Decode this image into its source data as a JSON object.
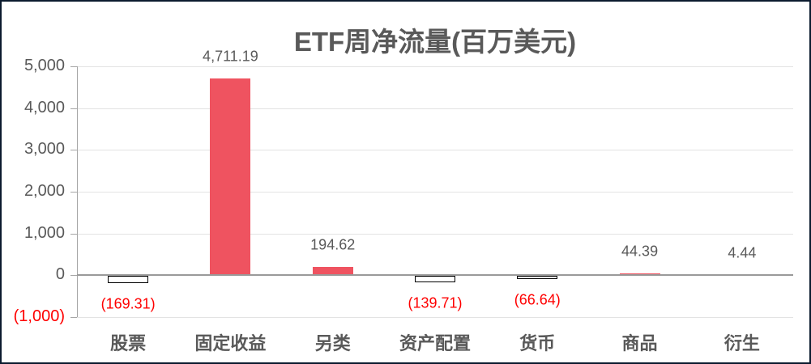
{
  "window": {
    "background": "#FFFFFF",
    "border_color": "#0B1A2E"
  },
  "chart_data": {
    "type": "bar",
    "title": "ETF周净流量(百万美元)",
    "categories": [
      "股票",
      "固定收益",
      "另类",
      "资产配置",
      "货币",
      "商品",
      "衍生"
    ],
    "values": [
      -169.31,
      4711.19,
      194.62,
      -139.71,
      -66.64,
      44.39,
      4.44
    ],
    "data_labels": [
      "(169.31)",
      "4,711.19",
      "194.62",
      "(139.71)",
      "(66.64)",
      "44.39",
      "4.44"
    ],
    "xlabel": "",
    "ylabel": "",
    "ylim": [
      -1000,
      5000
    ],
    "grid": true,
    "legend": false,
    "y_axis": {
      "ticks": [
        {
          "label": "5,000",
          "value": 5000
        },
        {
          "label": "4,000",
          "value": 4000
        },
        {
          "label": "3,000",
          "value": 3000
        },
        {
          "label": "2,000",
          "value": 2000
        },
        {
          "label": "1,000",
          "value": 1000
        },
        {
          "label": "0",
          "value": 0
        },
        {
          "label": "(1,000)",
          "value": -1000
        }
      ]
    },
    "styles": {
      "positive_bar_color": "#EF5360",
      "negative_bar_fill": "#FFFFFF",
      "negative_bar_border": "#000000",
      "text_color": "#595959",
      "negative_text_color": "#FF0000",
      "gridline_color": "#E3E3E3",
      "zero_line_color": "#9A9A9A",
      "axis_color": "#A6A6A6"
    }
  }
}
